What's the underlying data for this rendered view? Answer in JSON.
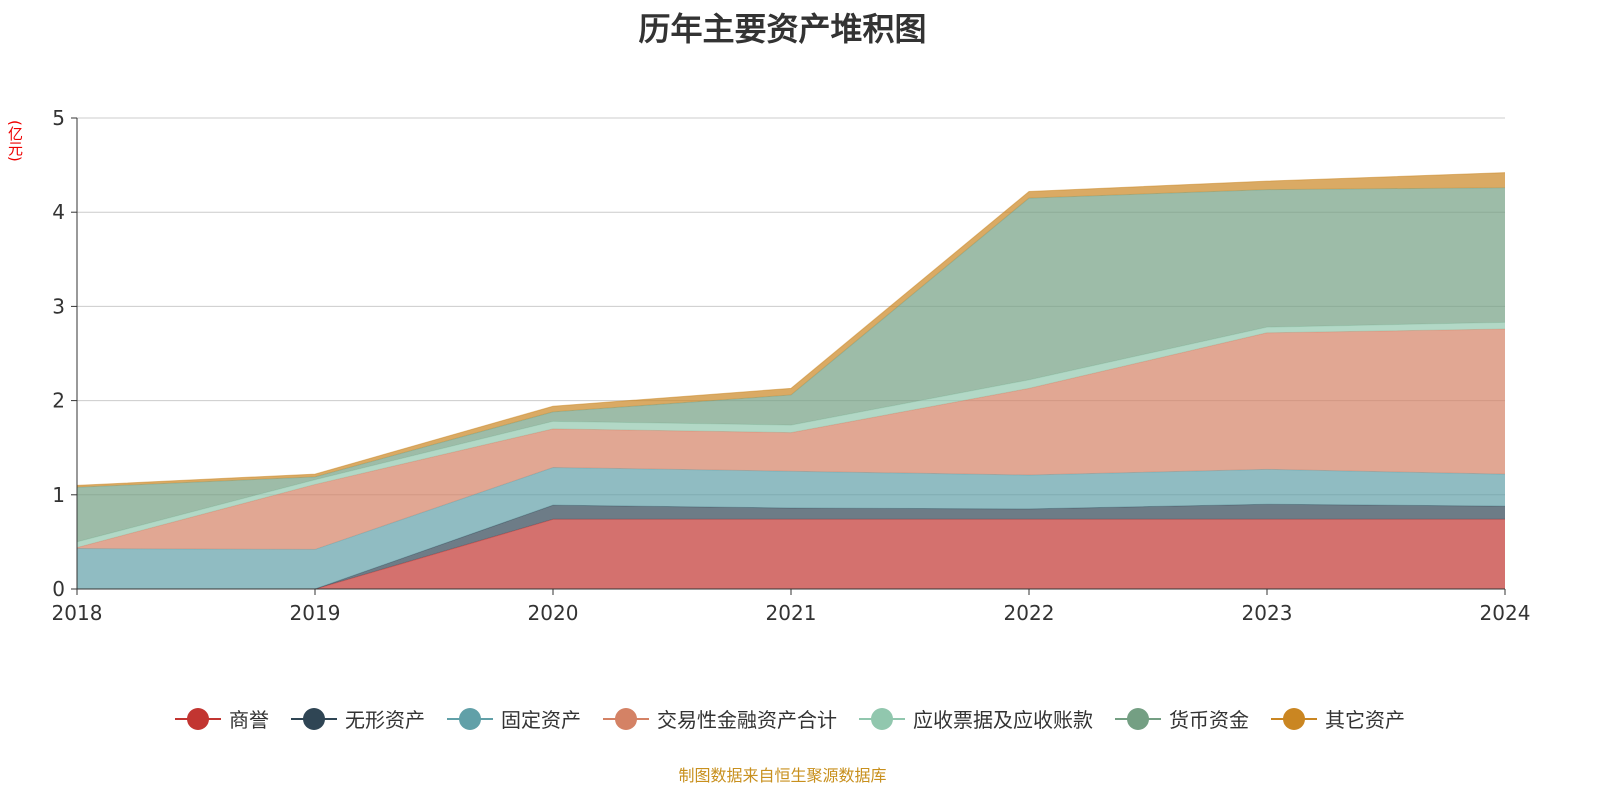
{
  "chart_data": {
    "type": "area",
    "stacked": true,
    "title": "历年主要资产堆积图",
    "ylabel": "(亿元)",
    "xlabel": "",
    "ylim": [
      0,
      5
    ],
    "yticks": [
      "0",
      "1",
      "2",
      "3",
      "4",
      "5"
    ],
    "categories": [
      "2018",
      "2019",
      "2020",
      "2021",
      "2022",
      "2023",
      "2024"
    ],
    "grid": true,
    "legend_position": "bottom",
    "series": [
      {
        "name": "商誉",
        "color": "#c23531",
        "values": [
          0,
          0,
          0.74,
          0.74,
          0.74,
          0.74,
          0.74
        ]
      },
      {
        "name": "无形资产",
        "color": "#2f4554",
        "values": [
          0,
          0,
          0.15,
          0.12,
          0.11,
          0.16,
          0.14
        ]
      },
      {
        "name": "固定资产",
        "color": "#61a0a8",
        "values": [
          0.43,
          0.42,
          0.4,
          0.39,
          0.36,
          0.37,
          0.34
        ]
      },
      {
        "name": "交易性金融资产合计",
        "color": "#d48265",
        "values": [
          0.01,
          0.69,
          0.41,
          0.41,
          0.92,
          1.45,
          1.54
        ]
      },
      {
        "name": "应收票据及应收账款",
        "color": "#91c7ae",
        "values": [
          0.06,
          0.05,
          0.08,
          0.08,
          0.09,
          0.06,
          0.07
        ]
      },
      {
        "name": "货币资金",
        "color": "#749f83",
        "values": [
          0.58,
          0.03,
          0.1,
          0.32,
          1.93,
          1.46,
          1.43
        ]
      },
      {
        "name": "其它资产",
        "color": "#ca8622",
        "values": [
          0.02,
          0.03,
          0.06,
          0.07,
          0.07,
          0.09,
          0.16
        ]
      }
    ]
  },
  "footer": "制图数据来自恒生聚源数据库"
}
